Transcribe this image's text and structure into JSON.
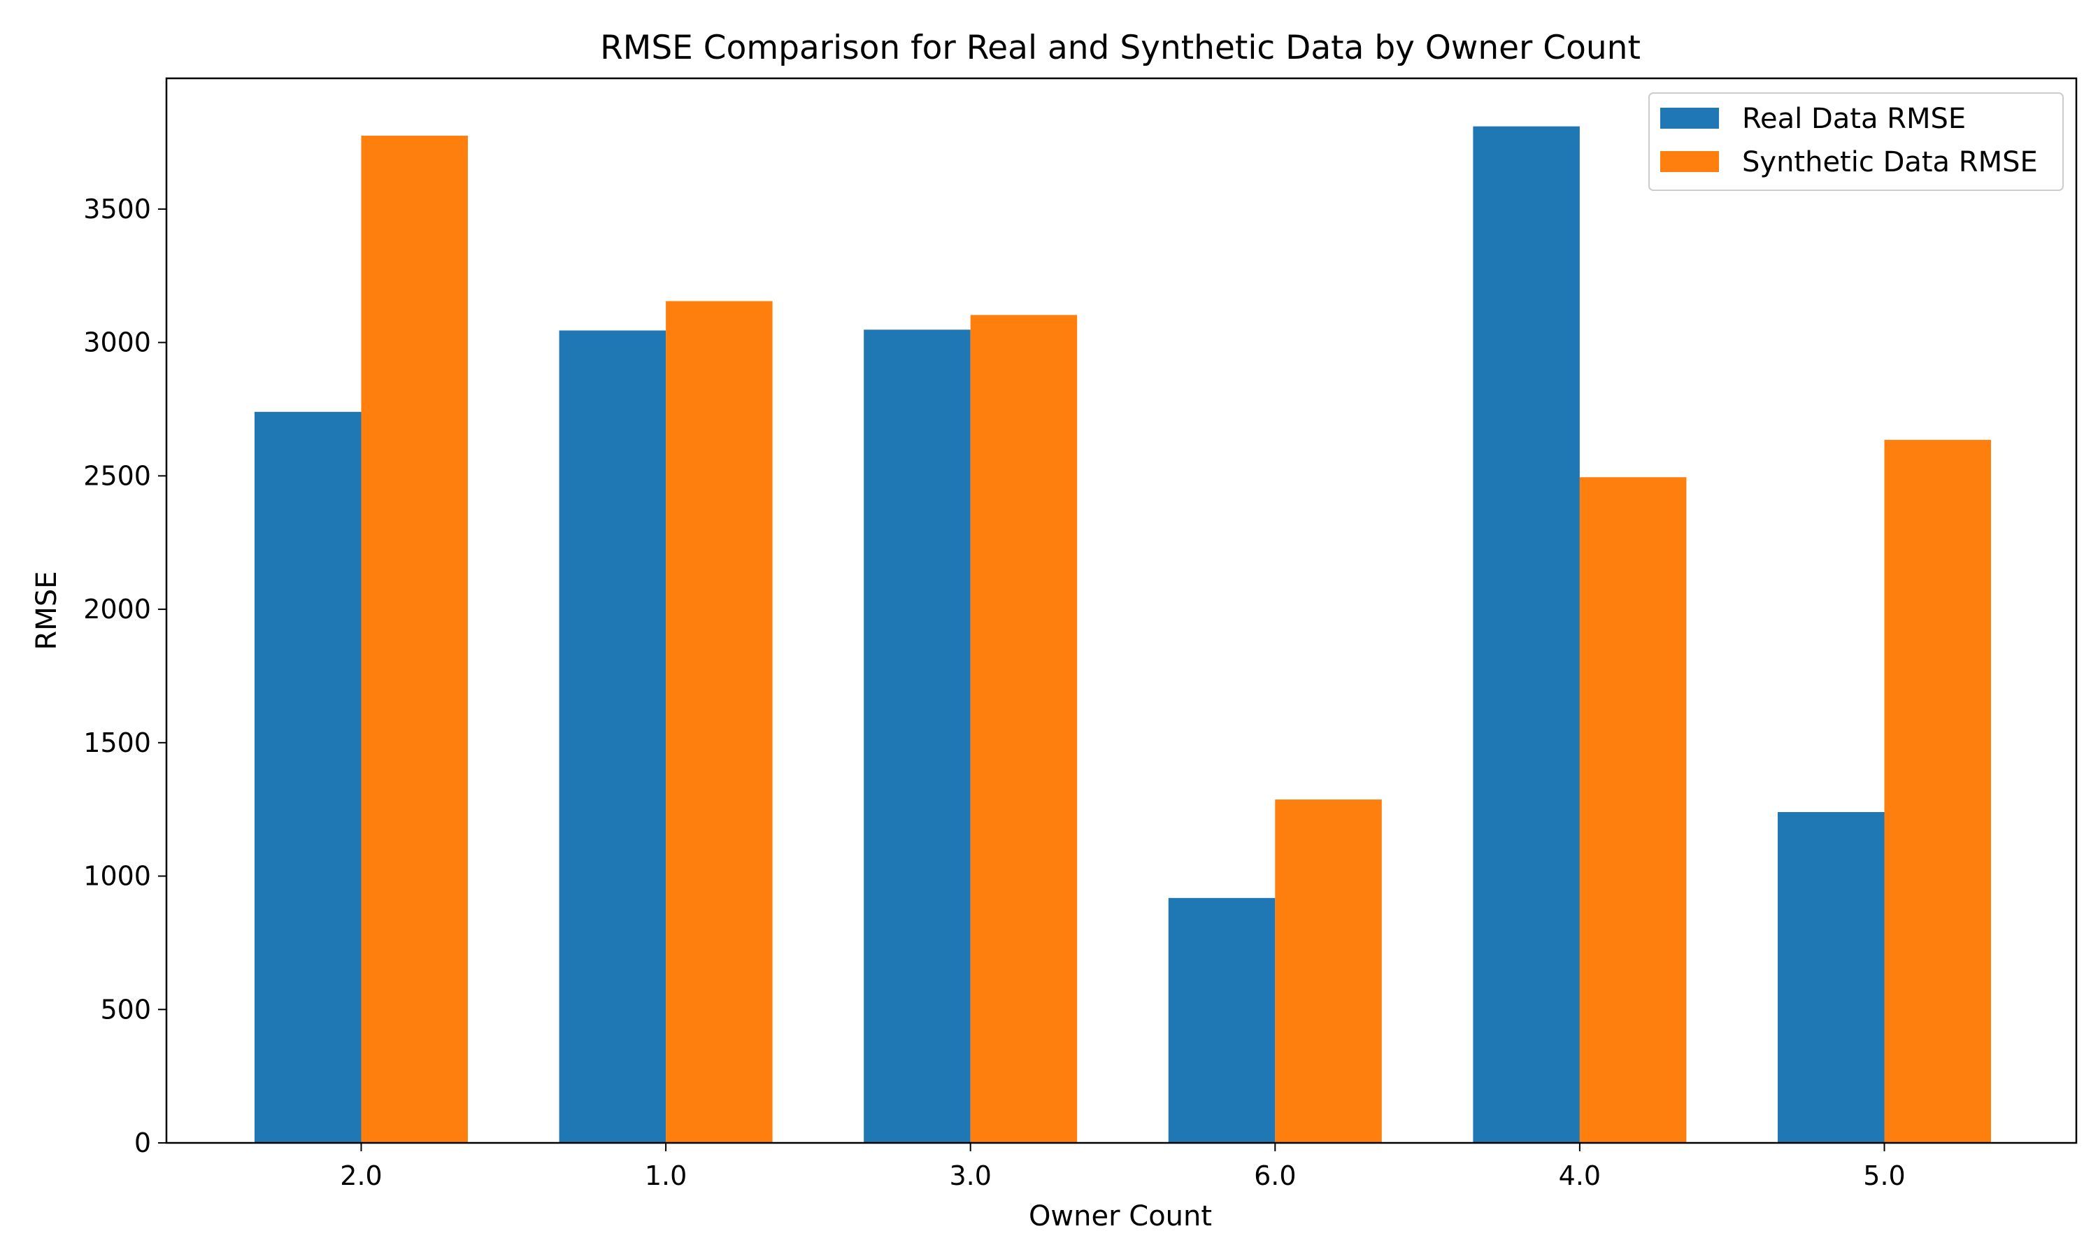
{
  "chart_data": {
    "type": "bar",
    "title": "RMSE Comparison for Real and Synthetic Data by Owner Count",
    "xlabel": "Owner Count",
    "ylabel": "RMSE",
    "categories": [
      "2.0",
      "1.0",
      "3.0",
      "6.0",
      "4.0",
      "5.0"
    ],
    "series": [
      {
        "name": "Real Data RMSE",
        "color": "#1f77b4",
        "values": [
          2740,
          3045,
          3048,
          918,
          3810,
          1240
        ]
      },
      {
        "name": "Synthetic Data RMSE",
        "color": "#ff7f0e",
        "values": [
          3775,
          3155,
          3103,
          1287,
          2495,
          2635
        ]
      }
    ],
    "ylim": [
      0,
      3990
    ],
    "yticks": [
      0,
      500,
      1000,
      1500,
      2000,
      2500,
      3000,
      3500
    ],
    "grid": false,
    "legend_position": "top-right"
  }
}
